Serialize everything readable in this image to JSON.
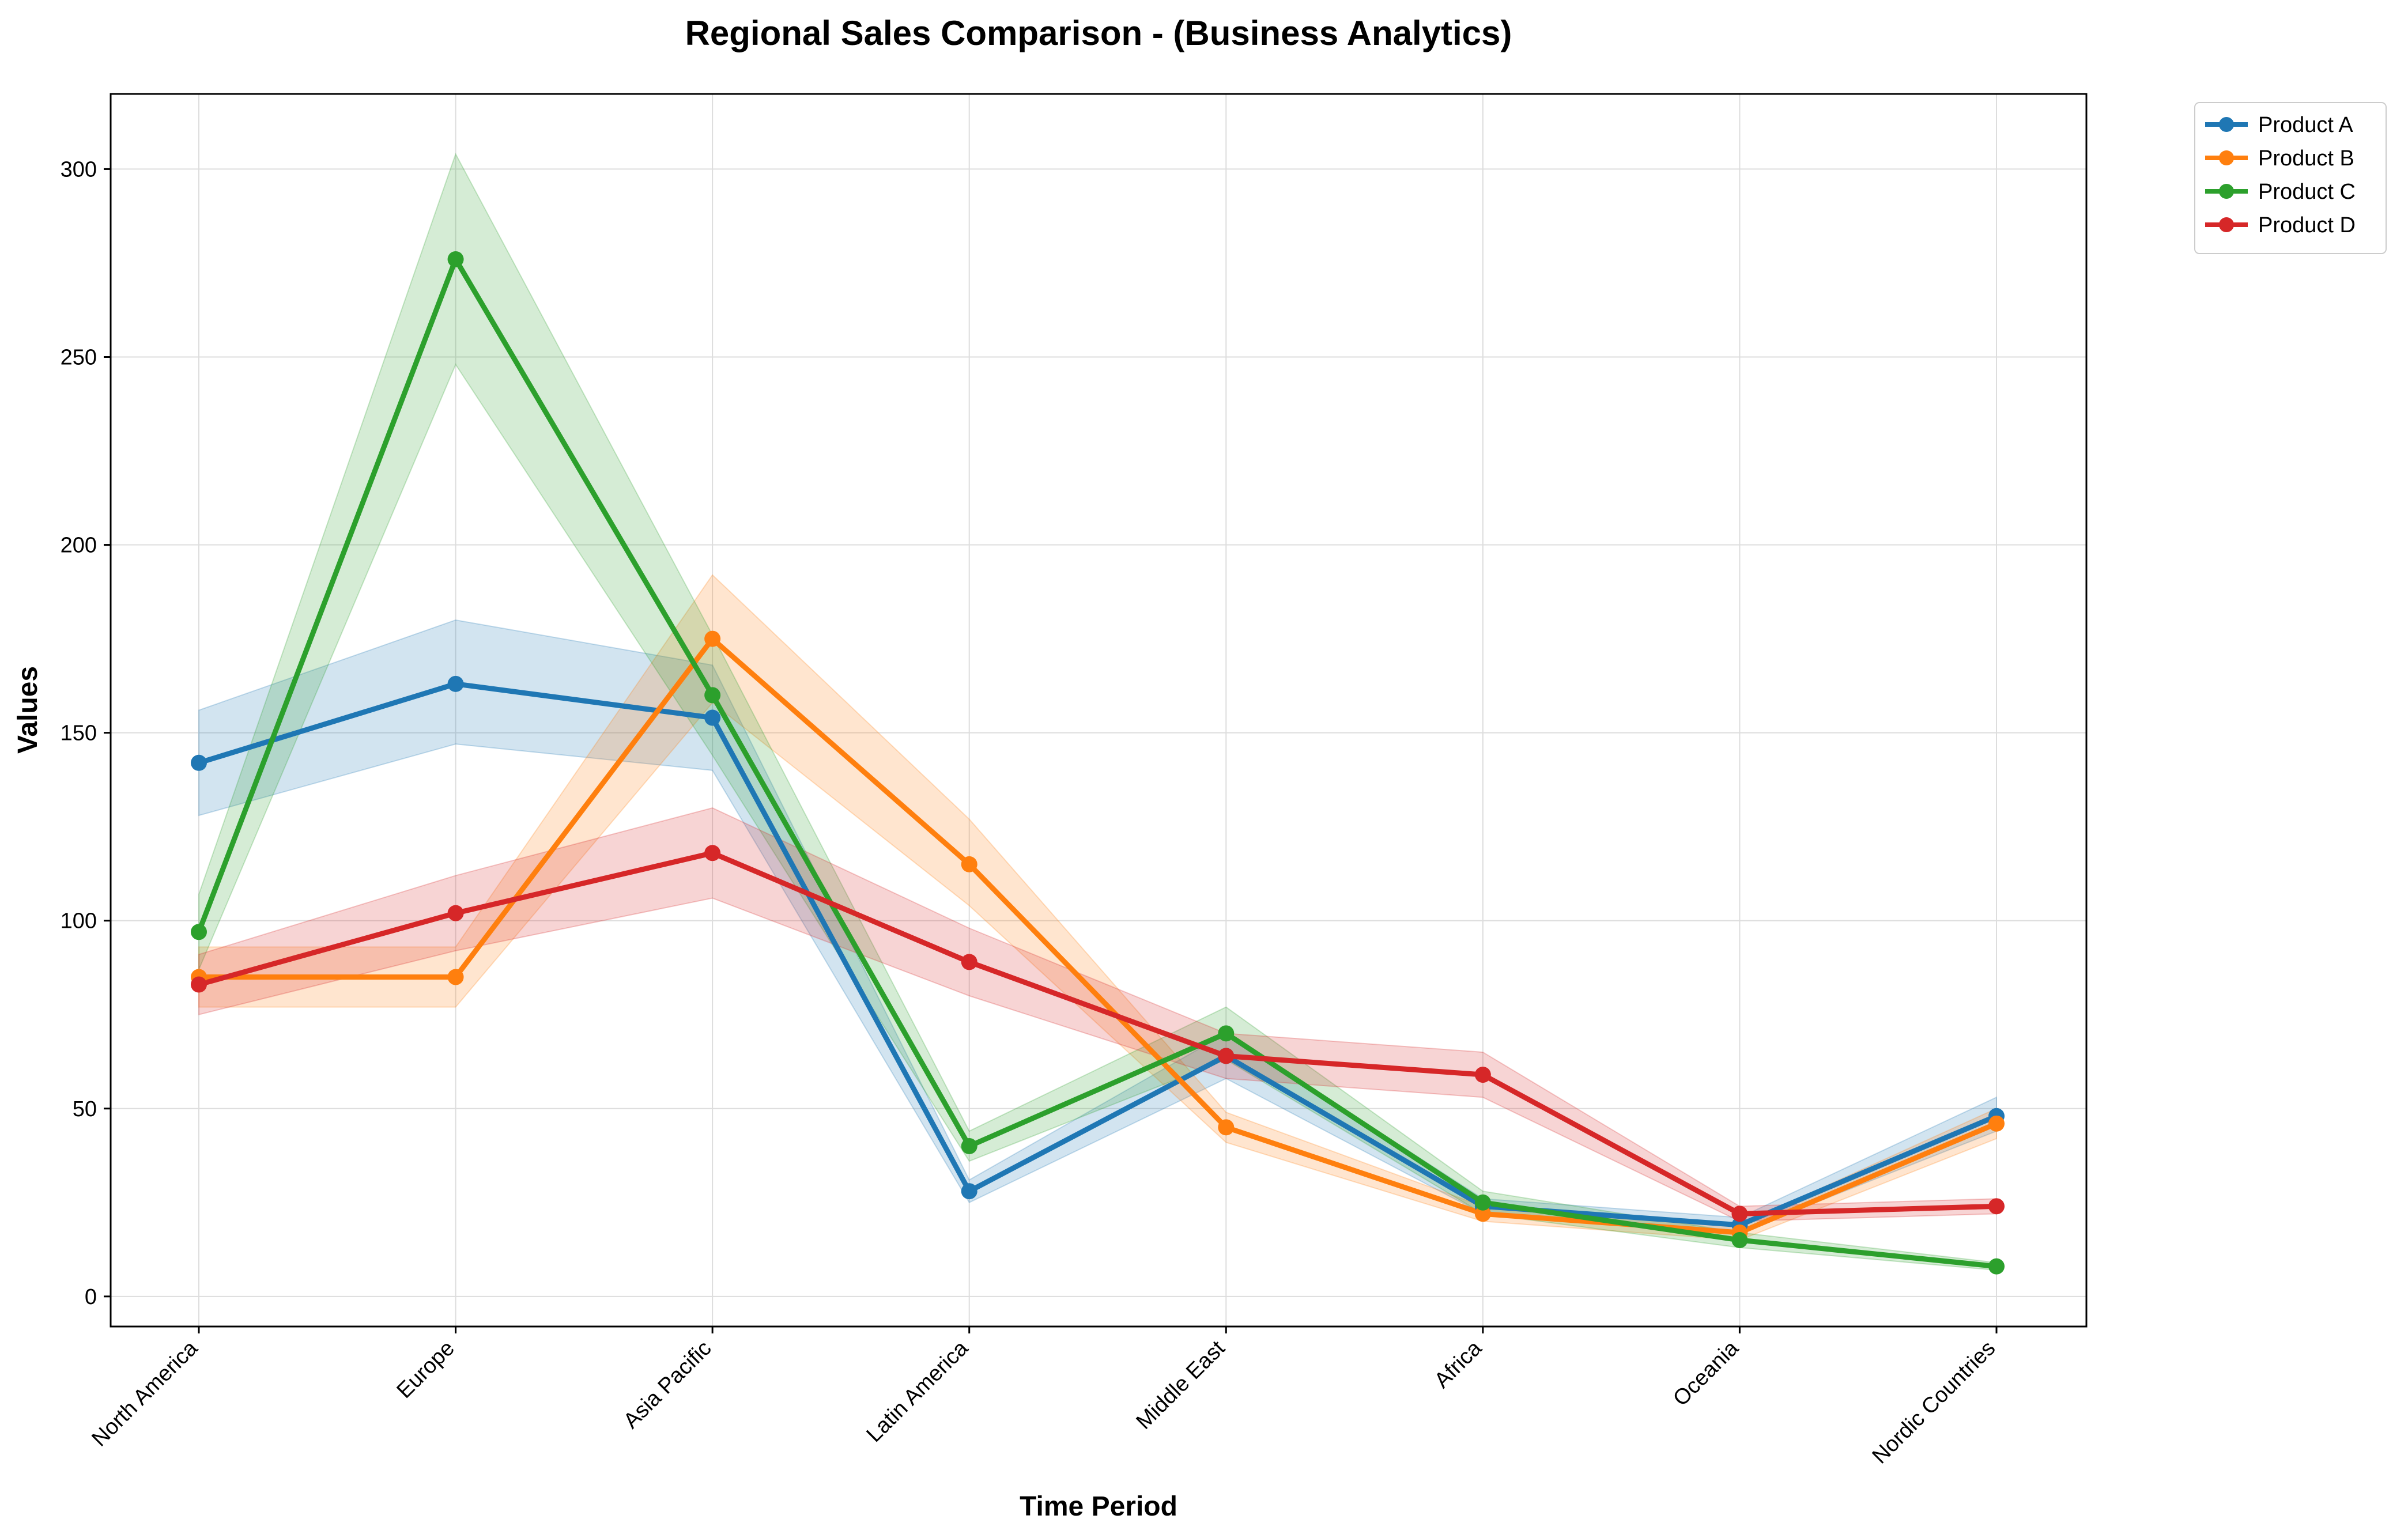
{
  "chart_data": {
    "type": "line",
    "title": "Regional Sales Comparison - (Business Analytics)",
    "xlabel": "Time Period",
    "ylabel": "Values",
    "categories": [
      "North America",
      "Europe",
      "Asia Pacific",
      "Latin America",
      "Middle East",
      "Africa",
      "Oceania",
      "Nordic Countries"
    ],
    "ylim": [
      -8,
      320
    ],
    "yticks": [
      0,
      50,
      100,
      150,
      200,
      250,
      300
    ],
    "grid": true,
    "legend_position": "top-right",
    "band": "shaded band around each line",
    "series": [
      {
        "name": "Product A",
        "color": "#1f77b4",
        "values": [
          142,
          163,
          154,
          28,
          64,
          24,
          19,
          48
        ],
        "lower": [
          128,
          147,
          140,
          25,
          58,
          22,
          17,
          44
        ],
        "upper": [
          156,
          180,
          168,
          31,
          70,
          26,
          21,
          53
        ]
      },
      {
        "name": "Product B",
        "color": "#ff7f0e",
        "values": [
          85,
          85,
          175,
          115,
          45,
          22,
          17,
          46
        ],
        "lower": [
          77,
          77,
          158,
          104,
          41,
          20,
          15,
          42
        ],
        "upper": [
          93,
          93,
          192,
          127,
          49,
          24,
          19,
          50
        ]
      },
      {
        "name": "Product C",
        "color": "#2ca02c",
        "values": [
          97,
          276,
          160,
          40,
          70,
          25,
          15,
          8
        ],
        "lower": [
          87,
          248,
          144,
          36,
          63,
          22,
          13,
          7
        ],
        "upper": [
          107,
          304,
          176,
          44,
          77,
          28,
          17,
          9
        ]
      },
      {
        "name": "Product D",
        "color": "#d62728",
        "values": [
          83,
          102,
          118,
          89,
          64,
          59,
          22,
          24
        ],
        "lower": [
          75,
          92,
          106,
          80,
          58,
          53,
          20,
          22
        ],
        "upper": [
          91,
          112,
          130,
          98,
          70,
          65,
          24,
          26
        ]
      }
    ]
  }
}
